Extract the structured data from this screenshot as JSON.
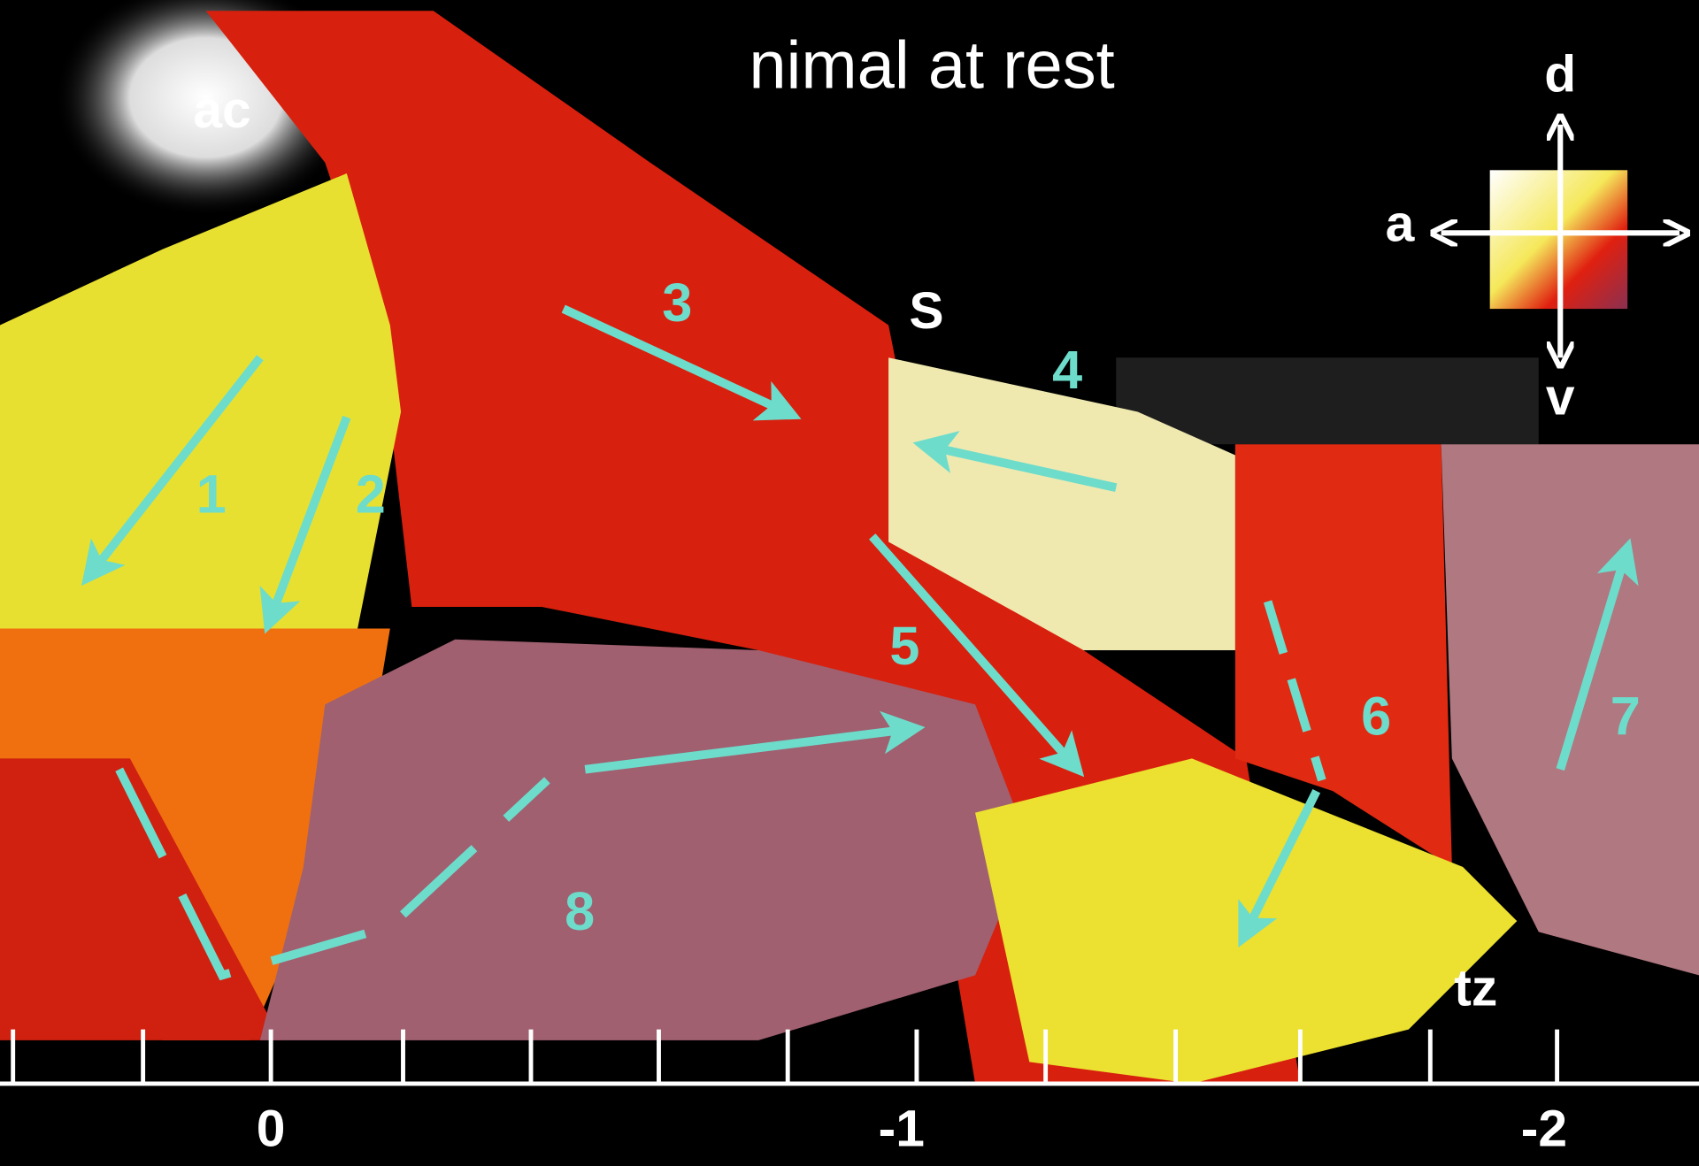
{
  "figure": {
    "title": "nimal at rest",
    "regions": {
      "ac": "ac",
      "s": "S",
      "tz": "tz"
    },
    "orientation": {
      "dorsal": "d",
      "anterior": "a",
      "ventral": "v"
    },
    "arrows": [
      "1",
      "2",
      "3",
      "4",
      "5",
      "6",
      "7",
      "8"
    ],
    "scale": {
      "labels": [
        "0",
        "-1",
        "-2"
      ]
    }
  }
}
